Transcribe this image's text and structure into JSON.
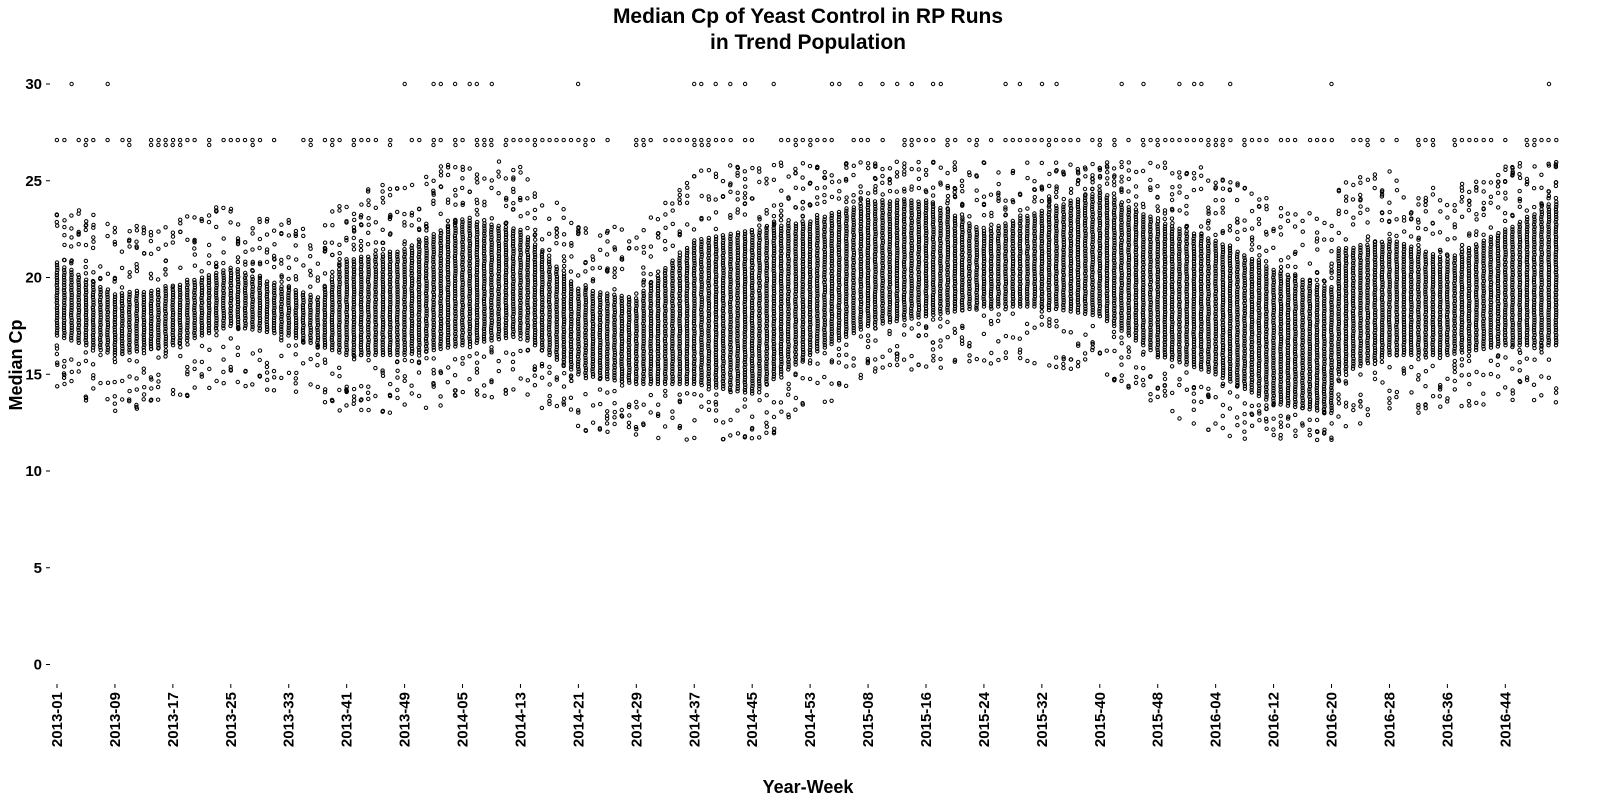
{
  "chart_data": {
    "type": "scatter",
    "title_line1": "Median Cp of Yeast Control in RP Runs",
    "title_line2": "in Trend Population",
    "xlabel": "Year-Week",
    "ylabel": "Median Cp",
    "ylim": [
      -1.4,
      31.5
    ],
    "yticks": [
      0,
      5,
      10,
      15,
      20,
      25,
      30
    ],
    "grid": false,
    "legend": "none",
    "x_tick_labels": [
      "2013-01",
      "2013-09",
      "2013-17",
      "2013-25",
      "2013-33",
      "2013-41",
      "2013-49",
      "2014-05",
      "2014-13",
      "2014-21",
      "2014-29",
      "2014-37",
      "2014-45",
      "2014-53",
      "2015-08",
      "2015-16",
      "2015-24",
      "2015-32",
      "2015-40",
      "2015-48",
      "2016-04",
      "2016-12",
      "2016-20",
      "2016-28",
      "2016-36",
      "2016-44"
    ],
    "weeks": [
      "2013-01",
      "2013-02",
      "2013-03",
      "2013-04",
      "2013-05",
      "2013-06",
      "2013-07",
      "2013-08",
      "2013-09",
      "2013-10",
      "2013-11",
      "2013-12",
      "2013-13",
      "2013-14",
      "2013-15",
      "2013-16",
      "2013-17",
      "2013-18",
      "2013-19",
      "2013-20",
      "2013-21",
      "2013-22",
      "2013-23",
      "2013-24",
      "2013-25",
      "2013-26",
      "2013-27",
      "2013-28",
      "2013-29",
      "2013-30",
      "2013-31",
      "2013-32",
      "2013-33",
      "2013-34",
      "2013-35",
      "2013-36",
      "2013-37",
      "2013-38",
      "2013-39",
      "2013-40",
      "2013-41",
      "2013-42",
      "2013-43",
      "2013-44",
      "2013-45",
      "2013-46",
      "2013-47",
      "2013-48",
      "2013-49",
      "2013-50",
      "2013-51",
      "2013-52",
      "2014-01",
      "2014-02",
      "2014-03",
      "2014-04",
      "2014-05",
      "2014-06",
      "2014-07",
      "2014-08",
      "2014-09",
      "2014-10",
      "2014-11",
      "2014-12",
      "2014-13",
      "2014-14",
      "2014-15",
      "2014-16",
      "2014-17",
      "2014-18",
      "2014-19",
      "2014-20",
      "2014-21",
      "2014-22",
      "2014-23",
      "2014-24",
      "2014-25",
      "2014-26",
      "2014-27",
      "2014-28",
      "2014-29",
      "2014-30",
      "2014-31",
      "2014-32",
      "2014-33",
      "2014-34",
      "2014-35",
      "2014-36",
      "2014-37",
      "2014-38",
      "2014-39",
      "2014-40",
      "2014-41",
      "2014-42",
      "2014-43",
      "2014-44",
      "2014-45",
      "2014-46",
      "2014-47",
      "2014-48",
      "2014-49",
      "2014-50",
      "2014-51",
      "2014-52",
      "2014-53",
      "2015-01",
      "2015-02",
      "2015-03",
      "2015-04",
      "2015-05",
      "2015-06",
      "2015-07",
      "2015-08",
      "2015-09",
      "2015-10",
      "2015-11",
      "2015-12",
      "2015-13",
      "2015-14",
      "2015-15",
      "2015-16",
      "2015-17",
      "2015-18",
      "2015-19",
      "2015-20",
      "2015-21",
      "2015-22",
      "2015-23",
      "2015-24",
      "2015-25",
      "2015-26",
      "2015-27",
      "2015-28",
      "2015-29",
      "2015-30",
      "2015-31",
      "2015-32",
      "2015-33",
      "2015-34",
      "2015-35",
      "2015-36",
      "2015-37",
      "2015-38",
      "2015-39",
      "2015-40",
      "2015-41",
      "2015-42",
      "2015-43",
      "2015-44",
      "2015-45",
      "2015-46",
      "2015-47",
      "2015-48",
      "2015-49",
      "2015-50",
      "2015-51",
      "2015-52",
      "2016-01",
      "2016-02",
      "2016-03",
      "2016-04",
      "2016-05",
      "2016-06",
      "2016-07",
      "2016-08",
      "2016-09",
      "2016-10",
      "2016-11",
      "2016-12",
      "2016-13",
      "2016-14",
      "2016-15",
      "2016-16",
      "2016-17",
      "2016-18",
      "2016-19",
      "2016-20",
      "2016-21",
      "2016-22",
      "2016-23",
      "2016-24",
      "2016-25",
      "2016-26",
      "2016-27",
      "2016-28",
      "2016-29",
      "2016-30",
      "2016-31",
      "2016-32",
      "2016-33",
      "2016-34",
      "2016-35",
      "2016-36",
      "2016-37",
      "2016-38",
      "2016-39",
      "2016-40",
      "2016-41",
      "2016-42",
      "2016-43",
      "2016-44",
      "2016-45",
      "2016-46",
      "2016-47",
      "2016-48",
      "2016-49",
      "2016-50",
      "2016-51"
    ],
    "band_keyframes": [
      {
        "week": "2013-01",
        "low": 17.0,
        "high": 20.8
      },
      {
        "week": "2013-09",
        "low": 16.0,
        "high": 19.2
      },
      {
        "week": "2013-17",
        "low": 16.5,
        "high": 19.5
      },
      {
        "week": "2013-25",
        "low": 17.5,
        "high": 20.5
      },
      {
        "week": "2013-33",
        "low": 17.0,
        "high": 19.5
      },
      {
        "week": "2013-37",
        "low": 16.5,
        "high": 19.0
      },
      {
        "week": "2013-41",
        "low": 16.0,
        "high": 21.0
      },
      {
        "week": "2013-49",
        "low": 16.0,
        "high": 21.5
      },
      {
        "week": "2014-05",
        "low": 16.5,
        "high": 23.0
      },
      {
        "week": "2014-13",
        "low": 17.0,
        "high": 22.5
      },
      {
        "week": "2014-21",
        "low": 15.0,
        "high": 19.5
      },
      {
        "week": "2014-29",
        "low": 14.5,
        "high": 19.0
      },
      {
        "week": "2014-37",
        "low": 14.5,
        "high": 22.0
      },
      {
        "week": "2014-45",
        "low": 14.0,
        "high": 22.5
      },
      {
        "week": "2014-53",
        "low": 16.0,
        "high": 23.0
      },
      {
        "week": "2015-08",
        "low": 17.5,
        "high": 24.0
      },
      {
        "week": "2015-16",
        "low": 18.0,
        "high": 24.0
      },
      {
        "week": "2015-24",
        "low": 18.5,
        "high": 22.5
      },
      {
        "week": "2015-32",
        "low": 18.5,
        "high": 23.5
      },
      {
        "week": "2015-40",
        "low": 18.0,
        "high": 24.5
      },
      {
        "week": "2015-48",
        "low": 16.0,
        "high": 23.0
      },
      {
        "week": "2016-04",
        "low": 15.0,
        "high": 22.0
      },
      {
        "week": "2016-12",
        "low": 13.5,
        "high": 20.5
      },
      {
        "week": "2016-20",
        "low": 13.0,
        "high": 19.5
      },
      {
        "week": "2016-21",
        "low": 15.0,
        "high": 21.5
      },
      {
        "week": "2016-28",
        "low": 16.0,
        "high": 22.0
      },
      {
        "week": "2016-36",
        "low": 16.0,
        "high": 21.0
      },
      {
        "week": "2016-44",
        "low": 16.5,
        "high": 22.5
      },
      {
        "week": "2016-51",
        "low": 16.5,
        "high": 24.0
      }
    ],
    "outlier_levels": {
      "low_tail_min": 11.6,
      "high_tail_max": 26.0,
      "cap_level": 27.1,
      "top_level": 30.0
    },
    "top_outlier_weeks": [
      "2013-03",
      "2013-08",
      "2013-49",
      "2014-01",
      "2014-02",
      "2014-04",
      "2014-06",
      "2014-07",
      "2014-09",
      "2014-21",
      "2014-37",
      "2014-38",
      "2014-40",
      "2014-42",
      "2014-44",
      "2014-48",
      "2015-03",
      "2015-04",
      "2015-07",
      "2015-10",
      "2015-12",
      "2015-14",
      "2015-17",
      "2015-18",
      "2015-27",
      "2015-29",
      "2015-32",
      "2015-34",
      "2015-43",
      "2015-46",
      "2015-51",
      "2016-01",
      "2016-02",
      "2016-06",
      "2016-20",
      "2016-50"
    ]
  }
}
